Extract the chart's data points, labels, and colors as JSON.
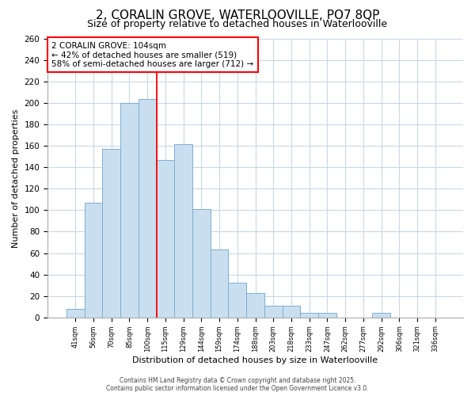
{
  "title": "2, CORALIN GROVE, WATERLOOVILLE, PO7 8QP",
  "subtitle": "Size of property relative to detached houses in Waterlooville",
  "xlabel": "Distribution of detached houses by size in Waterlooville",
  "ylabel": "Number of detached properties",
  "bar_labels": [
    "41sqm",
    "56sqm",
    "70sqm",
    "85sqm",
    "100sqm",
    "115sqm",
    "129sqm",
    "144sqm",
    "159sqm",
    "174sqm",
    "188sqm",
    "203sqm",
    "218sqm",
    "233sqm",
    "247sqm",
    "262sqm",
    "277sqm",
    "292sqm",
    "306sqm",
    "321sqm",
    "336sqm"
  ],
  "bar_values": [
    8,
    107,
    157,
    200,
    204,
    147,
    162,
    101,
    63,
    32,
    23,
    11,
    11,
    4,
    4,
    0,
    0,
    4,
    0,
    0,
    0
  ],
  "bar_color": "#c9dff0",
  "bar_edge_color": "#7bafd4",
  "ylim": [
    0,
    260
  ],
  "yticks": [
    0,
    20,
    40,
    60,
    80,
    100,
    120,
    140,
    160,
    180,
    200,
    220,
    240,
    260
  ],
  "vline_x": 4.5,
  "vline_color": "red",
  "annotation_title": "2 CORALIN GROVE: 104sqm",
  "annotation_line1": "← 42% of detached houses are smaller (519)",
  "annotation_line2": "58% of semi-detached houses are larger (712) →",
  "footer_line1": "Contains HM Land Registry data © Crown copyright and database right 2025.",
  "footer_line2": "Contains public sector information licensed under the Open Government Licence v3.0.",
  "background_color": "#ffffff",
  "grid_color": "#c8d8e8"
}
